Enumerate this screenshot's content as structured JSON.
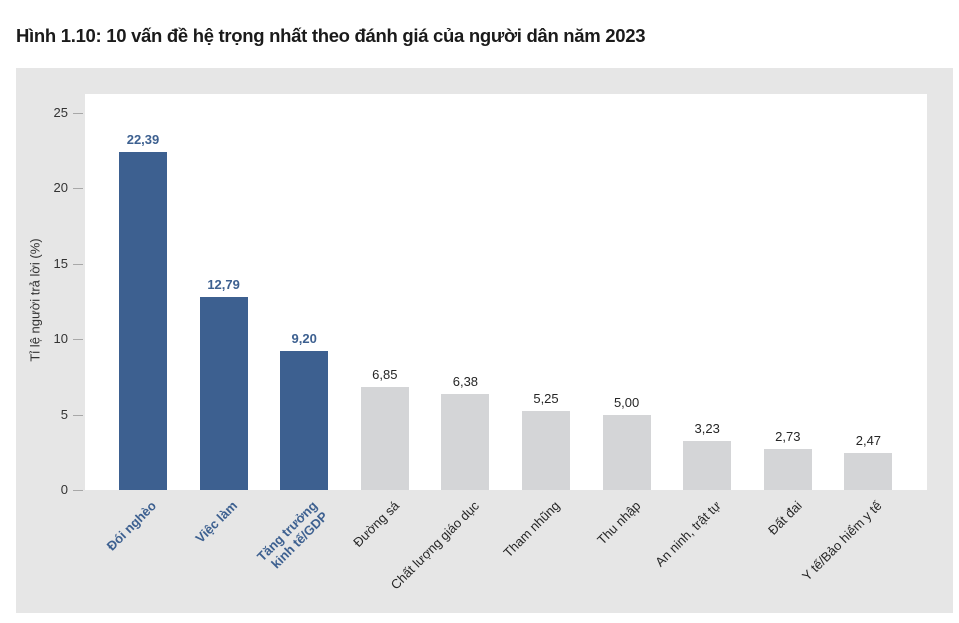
{
  "title": "Hình 1.10: 10 vấn đề hệ trọng nhất theo đánh giá của người dân năm 2023",
  "colors": {
    "highlight": "#3d6090",
    "normal": "#d4d5d7",
    "panel": "#e6e6e6",
    "plot": "#ffffff"
  },
  "y_axis": {
    "label": "Tỉ lệ người trả lời (%)",
    "ticks": [
      "0",
      "5",
      "10",
      "15",
      "20",
      "25"
    ]
  },
  "chart_data": {
    "type": "bar",
    "title": "Hình 1.10: 10 vấn đề hệ trọng nhất theo đánh giá của người dân năm 2023",
    "xlabel": "",
    "ylabel": "Tỉ lệ người trả lời (%)",
    "ylim": [
      0,
      25
    ],
    "yticks": [
      0,
      5,
      10,
      15,
      20,
      25
    ],
    "grid": false,
    "legend": null,
    "categories": [
      "Đói nghèo",
      "Việc làm",
      "Tăng trưởng kinh tế/GDP",
      "Đường sá",
      "Chất lượng giáo dục",
      "Tham nhũng",
      "Thu nhập",
      "An ninh, trật tự",
      "Đất đai",
      "Y tế/Bảo hiểm y tế"
    ],
    "values": [
      22.39,
      12.79,
      9.2,
      6.85,
      6.38,
      5.25,
      5.0,
      3.23,
      2.73,
      2.47
    ],
    "value_labels": [
      "22,39",
      "12,79",
      "9,20",
      "6,85",
      "6,38",
      "5,25",
      "5,00",
      "3,23",
      "2,73",
      "2,47"
    ],
    "highlighted": [
      true,
      true,
      true,
      false,
      false,
      false,
      false,
      false,
      false,
      false
    ]
  },
  "bars": [
    {
      "label_lines": [
        "Đói nghèo"
      ],
      "value_text": "22,39",
      "value": 22.39,
      "highlight": true
    },
    {
      "label_lines": [
        "Việc làm"
      ],
      "value_text": "12,79",
      "value": 12.79,
      "highlight": true
    },
    {
      "label_lines": [
        "Tăng trưởng",
        "kinh tế/GDP"
      ],
      "value_text": "9,20",
      "value": 9.2,
      "highlight": true
    },
    {
      "label_lines": [
        "Đường sá"
      ],
      "value_text": "6,85",
      "value": 6.85,
      "highlight": false
    },
    {
      "label_lines": [
        "Chất lượng giáo dục"
      ],
      "value_text": "6,38",
      "value": 6.38,
      "highlight": false
    },
    {
      "label_lines": [
        "Tham nhũng"
      ],
      "value_text": "5,25",
      "value": 5.25,
      "highlight": false
    },
    {
      "label_lines": [
        "Thu nhập"
      ],
      "value_text": "5,00",
      "value": 5.0,
      "highlight": false
    },
    {
      "label_lines": [
        "An ninh, trật tự"
      ],
      "value_text": "3,23",
      "value": 3.23,
      "highlight": false
    },
    {
      "label_lines": [
        "Đất đai"
      ],
      "value_text": "2,73",
      "value": 2.73,
      "highlight": false
    },
    {
      "label_lines": [
        "Y tế/Bảo hiểm y tế"
      ],
      "value_text": "2,47",
      "value": 2.47,
      "highlight": false
    }
  ]
}
